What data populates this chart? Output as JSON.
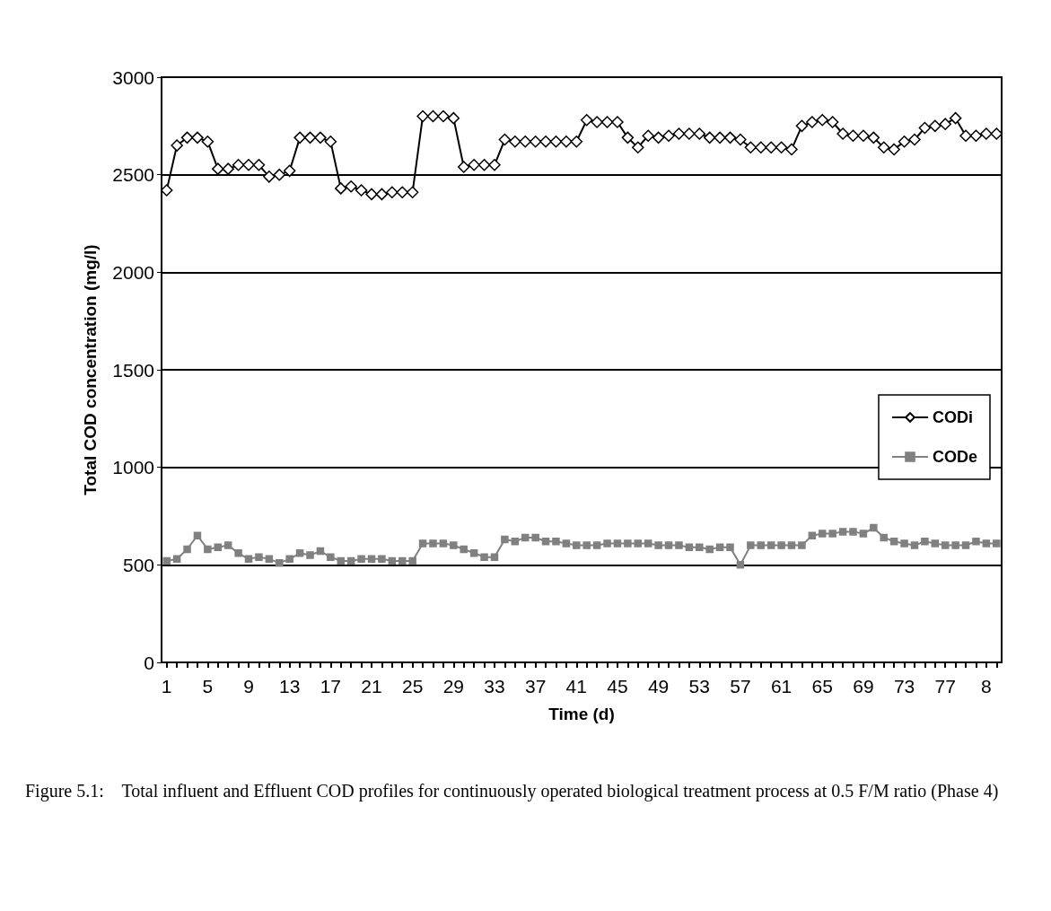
{
  "chart_data": {
    "type": "line",
    "xlabel": "Time (d)",
    "ylabel": "Total COD concentration (mg/l)",
    "categories": [
      "1",
      null,
      null,
      null,
      "5",
      null,
      null,
      null,
      "9",
      null,
      null,
      null,
      "13",
      null,
      null,
      null,
      "17",
      null,
      null,
      null,
      "21",
      null,
      null,
      null,
      "25",
      null,
      null,
      null,
      "29",
      null,
      null,
      null,
      "33",
      null,
      null,
      null,
      "37",
      null,
      null,
      null,
      "41",
      null,
      null,
      null,
      "45",
      null,
      null,
      null,
      "49",
      null,
      null,
      null,
      "53",
      null,
      null,
      null,
      "57",
      null,
      null,
      null,
      "61",
      null,
      null,
      null,
      "65",
      null,
      null,
      null,
      "69",
      null,
      null,
      null,
      "73",
      null,
      null,
      null,
      "77",
      null,
      null,
      null,
      "8",
      null
    ],
    "series": [
      {
        "name": "CODi",
        "color": "#000000",
        "marker": "diamond",
        "values": [
          2420,
          2650,
          2690,
          2690,
          2670,
          2530,
          2530,
          2550,
          2550,
          2550,
          2490,
          2500,
          2520,
          2690,
          2690,
          2690,
          2670,
          2430,
          2440,
          2420,
          2400,
          2400,
          2410,
          2410,
          2410,
          2800,
          2800,
          2800,
          2790,
          2540,
          2550,
          2550,
          2550,
          2680,
          2670,
          2670,
          2670,
          2670,
          2670,
          2670,
          2670,
          2780,
          2770,
          2770,
          2770,
          2690,
          2640,
          2700,
          2690,
          2700,
          2710,
          2710,
          2710,
          2690,
          2690,
          2690,
          2680,
          2640,
          2640,
          2640,
          2640,
          2630,
          2750,
          2770,
          2780,
          2770,
          2710,
          2700,
          2700,
          2690,
          2640,
          2630,
          2670,
          2680,
          2740,
          2750,
          2760,
          2790,
          2700,
          2700,
          2710,
          2710
        ]
      },
      {
        "name": "CODe",
        "color": "#808080",
        "marker": "square",
        "values": [
          520,
          530,
          580,
          650,
          580,
          590,
          600,
          560,
          530,
          540,
          530,
          510,
          530,
          560,
          550,
          570,
          540,
          520,
          520,
          530,
          530,
          530,
          520,
          520,
          520,
          610,
          610,
          610,
          600,
          580,
          560,
          540,
          540,
          630,
          620,
          640,
          640,
          620,
          620,
          610,
          600,
          600,
          600,
          610,
          610,
          610,
          610,
          610,
          600,
          600,
          600,
          590,
          590,
          580,
          590,
          590,
          500,
          600,
          600,
          600,
          600,
          600,
          600,
          650,
          660,
          660,
          670,
          670,
          660,
          690,
          640,
          620,
          610,
          600,
          620,
          610,
          600,
          600,
          600,
          620,
          610,
          610
        ]
      }
    ],
    "ylim": [
      0,
      3000
    ],
    "yticks": [
      0,
      500,
      1000,
      1500,
      2000,
      2500,
      3000
    ],
    "grid": "y",
    "legend": "right",
    "line_style": "solid",
    "annotations": [
      "Figure 5.1:    Total influent and Effluent COD profiles for continuously operated biological treatment process at 0.5 F/M ratio (Phase 4)"
    ]
  }
}
